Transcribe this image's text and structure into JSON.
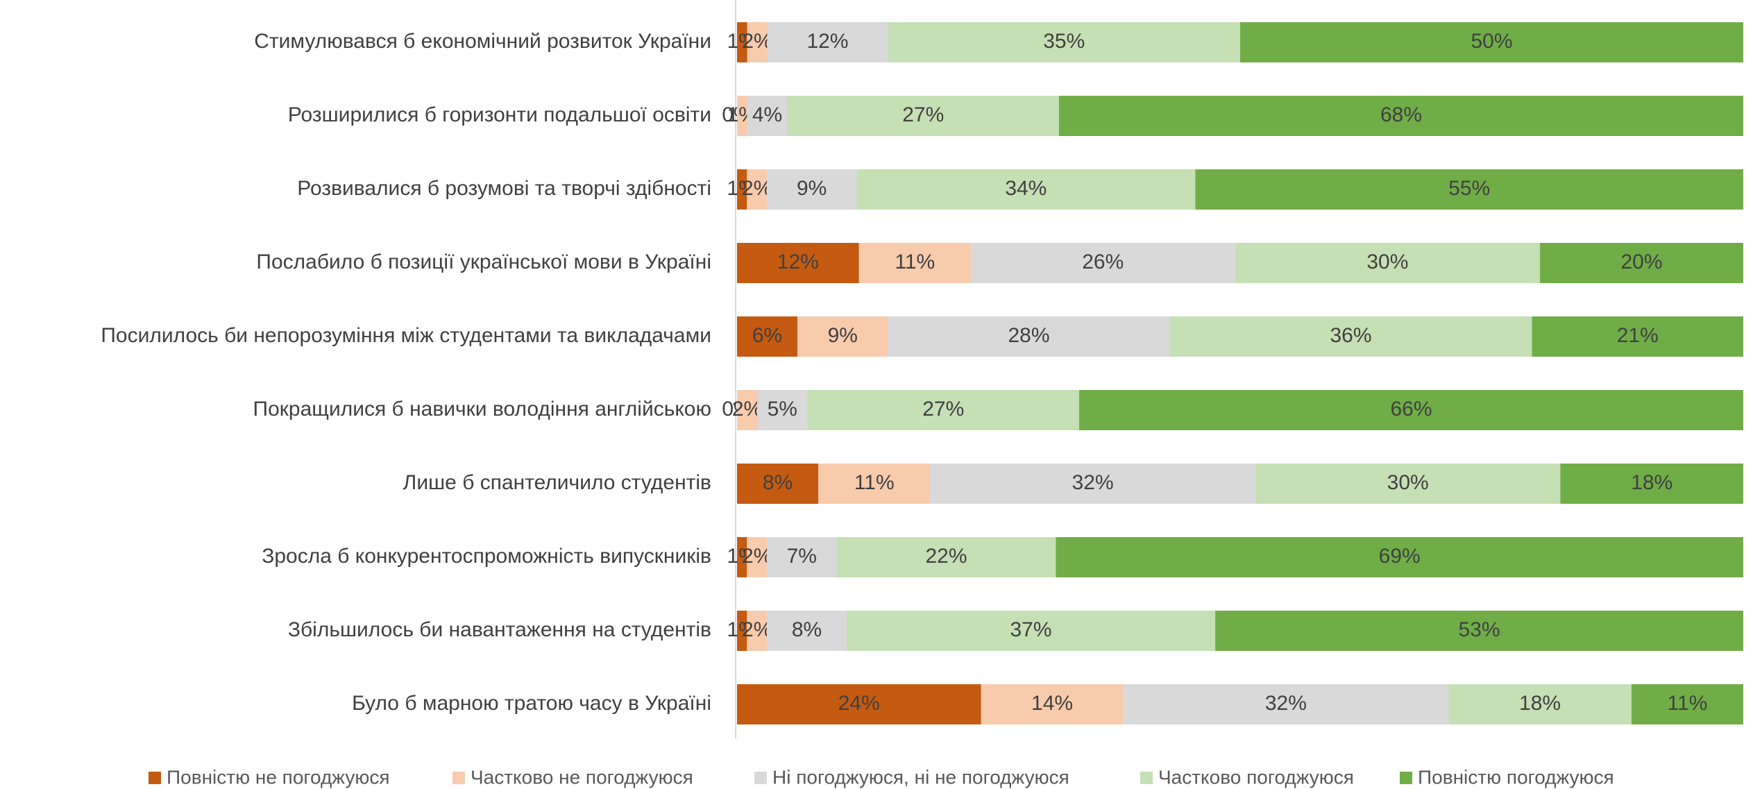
{
  "chart_data": {
    "type": "stacked-bar-horizontal",
    "categories": [
      "Стимулювався б економічний розвиток України",
      "Розширилися б горизонти подальшої освіти",
      "Розвивалися б розумові та творчі здібності",
      "Послабило б позиції української мови в Україні",
      "Посилилось би непорозуміння між студентами та викладачами",
      "Покращилися б навички володіння англійською",
      "Лише б спантеличило студентів",
      "Зросла б конкурентоспроможність випускників",
      "Збільшилось би навантаження на студентів",
      "Було б марною тратою часу в Україні"
    ],
    "series": [
      {
        "name": "Повністю не погоджуюся",
        "color": "#c55a11",
        "values": [
          1,
          0,
          1,
          12,
          6,
          0,
          8,
          1,
          1,
          24
        ],
        "value_labels": [
          "1%",
          "0%",
          "1%",
          "12%",
          "6%",
          "0%",
          "8%",
          "1%",
          "1%",
          "24%"
        ]
      },
      {
        "name": "Частково не погоджуюся",
        "color": "#f8cbad",
        "values": [
          2,
          1,
          2,
          11,
          9,
          2,
          11,
          2,
          2,
          14
        ],
        "value_labels": [
          "2%",
          "1%",
          "2%",
          "11%",
          "9%",
          "2%",
          "11%",
          "2%",
          "2%",
          "14%"
        ]
      },
      {
        "name": "Ні погоджуюся, ні не погоджуюся",
        "color": "#d9d9d9",
        "values": [
          12,
          4,
          9,
          26,
          28,
          5,
          32,
          7,
          8,
          32
        ],
        "value_labels": [
          "12%",
          "4%",
          "9%",
          "26%",
          "28%",
          "5%",
          "32%",
          "7%",
          "8%",
          "32%"
        ]
      },
      {
        "name": "Частково погоджуюся",
        "color": "#c5e0b4",
        "values": [
          35,
          27,
          34,
          30,
          36,
          27,
          30,
          22,
          37,
          18
        ],
        "value_labels": [
          "35%",
          "27%",
          "34%",
          "30%",
          "36%",
          "27%",
          "30%",
          "22%",
          "37%",
          "18%"
        ]
      },
      {
        "name": "Повністю погоджуюся",
        "color": "#70ad47",
        "values": [
          50,
          68,
          55,
          20,
          21,
          66,
          18,
          69,
          53,
          11
        ],
        "value_labels": [
          "50%",
          "68%",
          "55%",
          "20%",
          "21%",
          "66%",
          "18%",
          "69%",
          "53%",
          "11%"
        ]
      }
    ]
  }
}
